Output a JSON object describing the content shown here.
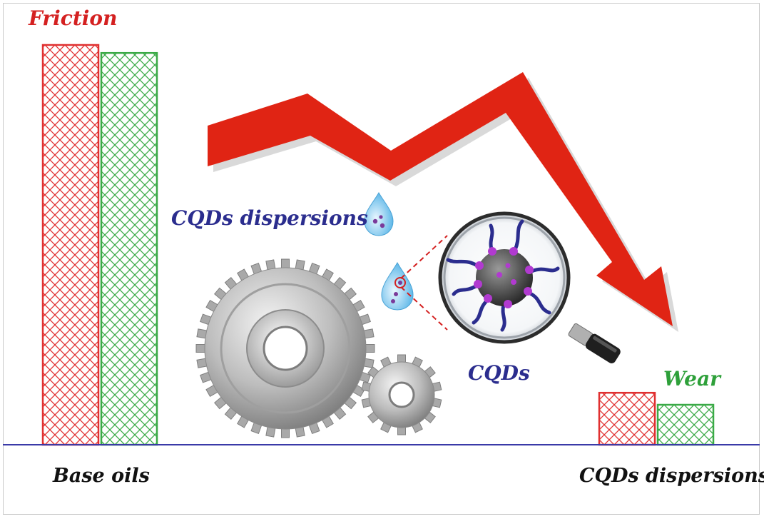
{
  "labels": {
    "friction": "Friction",
    "wear": "Wear",
    "base_oils": "Base oils",
    "cqds_dispersions_bottom": "CQDs dispersions",
    "cqds_dispersions_middle": "CQDs dispersions",
    "cqds": "CQDs"
  },
  "colors": {
    "friction": "#e03030",
    "wear": "#3aaa46",
    "arrow": "#e02414",
    "baseline": "#3a3aa8",
    "label_blue": "#2b2d8e"
  },
  "chart_data": {
    "type": "bar",
    "categories": [
      "Base oils",
      "CQDs dispersions"
    ],
    "series": [
      {
        "name": "Friction",
        "values": [
          1.0,
          0.13
        ]
      },
      {
        "name": "Wear",
        "values": [
          0.98,
          0.1
        ]
      }
    ],
    "trend": "decreasing"
  }
}
